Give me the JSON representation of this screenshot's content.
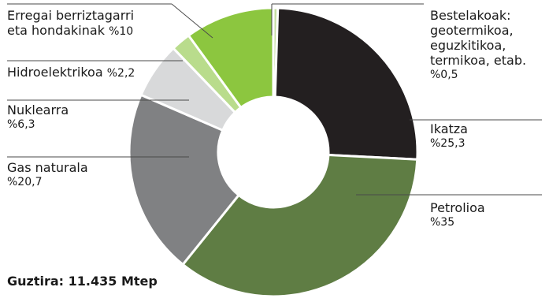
{
  "chart_data": {
    "type": "pie",
    "donut": true,
    "total_label": "Guztira: 11.435 Mtep",
    "slices": [
      {
        "key": "bestelakoak",
        "label_lines": [
          "Bestelakoak:",
          "geotermikoa,",
          "eguzkitikoa,",
          "termikoa, etab."
        ],
        "value_text": "%0,5",
        "value": 0.5,
        "color": "#c5dea0"
      },
      {
        "key": "ikatza",
        "label_lines": [
          "Ikatza"
        ],
        "value_text": "%25,3",
        "value": 25.3,
        "color": "#231f20"
      },
      {
        "key": "petrolioa",
        "label_lines": [
          "Petrolioa"
        ],
        "value_text": "%35",
        "value": 35,
        "color": "#5f7d44"
      },
      {
        "key": "gas-naturala",
        "label_lines": [
          "Gas naturala"
        ],
        "value_text": "%20,7",
        "value": 20.7,
        "color": "#808183"
      },
      {
        "key": "nuklearra",
        "label_lines": [
          "Nuklearra"
        ],
        "value_text": "%6,3",
        "value": 6.3,
        "color": "#d8d9da"
      },
      {
        "key": "hidroelektrikoa",
        "label_lines": [
          "Hidroelektrikoa"
        ],
        "value_text": "%2,2",
        "value": 2.2,
        "color": "#b9dc8c"
      },
      {
        "key": "erregai-berriztagarri",
        "label_lines": [
          "Erregai berriztagarri",
          "eta hondakinak"
        ],
        "value_text": "%10",
        "value": 10,
        "color": "#8cc63f"
      }
    ]
  }
}
